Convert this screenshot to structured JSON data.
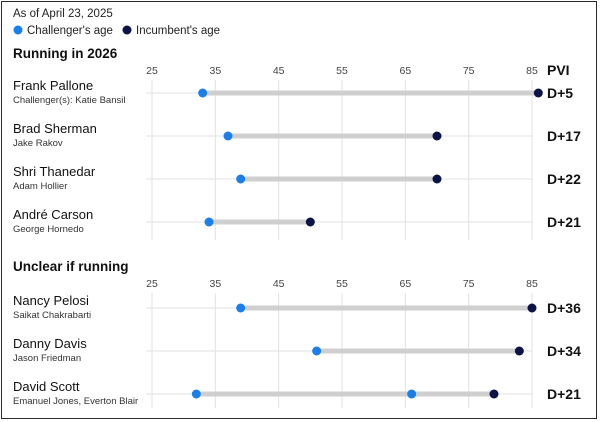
{
  "header": {
    "as_of": "As of April 23, 2025"
  },
  "legend": {
    "items": [
      {
        "label": "Challenger's age",
        "color": "#1a7fe8"
      },
      {
        "label": "Incumbent's age",
        "color": "#0c1447"
      }
    ]
  },
  "colors": {
    "challenger": "#1a7fe8",
    "incumbent": "#0c1447",
    "bar": "#cfcfcf",
    "grid": "#e2e2e2"
  },
  "chart_data": [
    {
      "type": "dumbbell",
      "title": "Running in 2026",
      "x_ticks": [
        25,
        35,
        45,
        55,
        65,
        75,
        85
      ],
      "xlim": [
        25,
        85
      ],
      "pvi_header": "PVI",
      "rows": [
        {
          "name": "Frank Pallone",
          "challengers_label": "Challenger(s): Katie Bansil",
          "incumbent_age": 86,
          "challenger_ages": [
            33
          ],
          "pvi": "D+5"
        },
        {
          "name": "Brad Sherman",
          "challengers_label": "Jake Rakov",
          "incumbent_age": 70,
          "challenger_ages": [
            37
          ],
          "pvi": "D+17"
        },
        {
          "name": "Shri Thanedar",
          "challengers_label": "Adam Hollier",
          "incumbent_age": 70,
          "challenger_ages": [
            39
          ],
          "pvi": "D+22"
        },
        {
          "name": "André Carson",
          "challengers_label": "George Hornedo",
          "incumbent_age": 50,
          "challenger_ages": [
            34
          ],
          "pvi": "D+21"
        }
      ]
    },
    {
      "type": "dumbbell",
      "title": "Unclear if running",
      "x_ticks": [
        25,
        35,
        45,
        55,
        65,
        75,
        85
      ],
      "xlim": [
        25,
        85
      ],
      "rows": [
        {
          "name": "Nancy Pelosi",
          "challengers_label": "Saikat Chakrabarti",
          "incumbent_age": 85,
          "challenger_ages": [
            39
          ],
          "pvi": "D+36"
        },
        {
          "name": "Danny Davis",
          "challengers_label": "Jason Friedman",
          "incumbent_age": 83,
          "challenger_ages": [
            51
          ],
          "pvi": "D+34"
        },
        {
          "name": "David Scott",
          "challengers_label": "Emanuel Jones, Everton Blair",
          "incumbent_age": 79,
          "challenger_ages": [
            32,
            66
          ],
          "pvi": "D+21"
        }
      ]
    }
  ]
}
